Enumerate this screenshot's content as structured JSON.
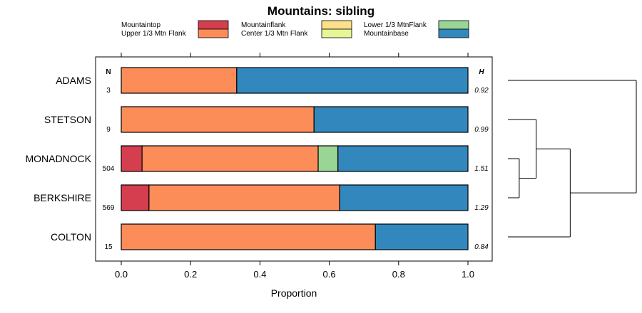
{
  "chart_data": {
    "type": "bar",
    "orientation": "horizontal",
    "stacked": true,
    "title": "Mountains: sibling",
    "xlabel": "Proportion",
    "ylabel": "",
    "xlim": [
      0,
      1
    ],
    "x_ticks": [
      "0.0",
      "0.2",
      "0.4",
      "0.6",
      "0.8",
      "1.0"
    ],
    "grid": false,
    "legend_position": "top",
    "n_header": "N",
    "h_header": "H",
    "categories": [
      "ADAMS",
      "STETSON",
      "MONADNOCK",
      "BERKSHIRE",
      "COLTON"
    ],
    "n_values": [
      "3",
      "9",
      "504",
      "569",
      "15"
    ],
    "h_values": [
      "0.92",
      "0.99",
      "1.51",
      "1.29",
      "0.84"
    ],
    "series": [
      {
        "name": "Mountaintop",
        "color": "#d53e4f",
        "values": [
          0,
          0,
          0.06,
          0.08,
          0
        ]
      },
      {
        "name": "Upper 1/3 Mtn Flank",
        "color": "#fc8d59",
        "values": [
          0.333,
          0.556,
          0.508,
          0.55,
          0.733
        ]
      },
      {
        "name": "Mountainflank",
        "color": "#fee08b",
        "values": [
          0,
          0,
          0,
          0,
          0
        ]
      },
      {
        "name": "Center 1/3 Mtn Flank",
        "color": "#e6f598",
        "values": [
          0,
          0,
          0,
          0,
          0
        ]
      },
      {
        "name": "Lower 1/3 MtnFlank",
        "color": "#99d594",
        "values": [
          0,
          0,
          0.057,
          0,
          0
        ]
      },
      {
        "name": "Mountainbase",
        "color": "#3288bd",
        "values": [
          0.667,
          0.444,
          0.375,
          0.37,
          0.267
        ]
      }
    ],
    "dendrogram": {
      "type": "dendrogram",
      "leaves": [
        "ADAMS",
        "STETSON",
        "MONADNOCK",
        "BERKSHIRE",
        "COLTON"
      ],
      "merges": [
        {
          "members": [
            "MONADNOCK",
            "BERKSHIRE"
          ],
          "height": 0.06
        },
        {
          "members": [
            "STETSON",
            "MONADNOCK",
            "BERKSHIRE"
          ],
          "height": 0.15
        },
        {
          "members": [
            "STETSON",
            "MONADNOCK",
            "BERKSHIRE",
            "COLTON"
          ],
          "height": 0.33
        },
        {
          "members": [
            "ADAMS",
            "STETSON",
            "MONADNOCK",
            "BERKSHIRE",
            "COLTON"
          ],
          "height": 0.68
        }
      ]
    }
  }
}
